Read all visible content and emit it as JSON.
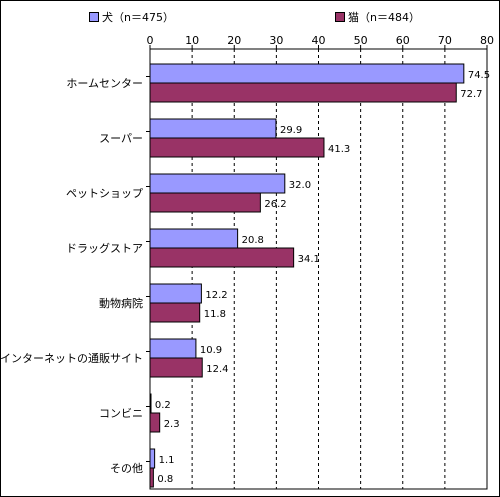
{
  "chart_data": {
    "type": "bar",
    "orientation": "horizontal",
    "categories": [
      "ホームセンター",
      "スーパー",
      "ペットショップ",
      "ドラッグストア",
      "動物病院",
      "インターネットの通販サイト",
      "コンビニ",
      "その他"
    ],
    "series": [
      {
        "name": "犬（n＝475）",
        "color": "#9999ff",
        "values": [
          74.5,
          29.9,
          32.0,
          20.8,
          12.2,
          10.9,
          0.2,
          1.1
        ],
        "labels": [
          "74.5",
          "29.9",
          "32.0",
          "20.8",
          "12.2",
          "10.9",
          "0.2",
          "1.1"
        ]
      },
      {
        "name": "猫（n＝484）",
        "color": "#993366",
        "values": [
          72.7,
          41.3,
          26.2,
          34.1,
          11.8,
          12.4,
          2.3,
          0.8
        ],
        "labels": [
          "72.7",
          "41.3",
          "26.2",
          "34.1",
          "11.8",
          "12.4",
          "2.3",
          "0.8"
        ]
      }
    ],
    "xlim": [
      0,
      80
    ],
    "xticks": [
      "0",
      "10",
      "20",
      "30",
      "40",
      "50",
      "60",
      "70",
      "80"
    ],
    "grid": "vertical dashed",
    "legend_position": "top"
  }
}
